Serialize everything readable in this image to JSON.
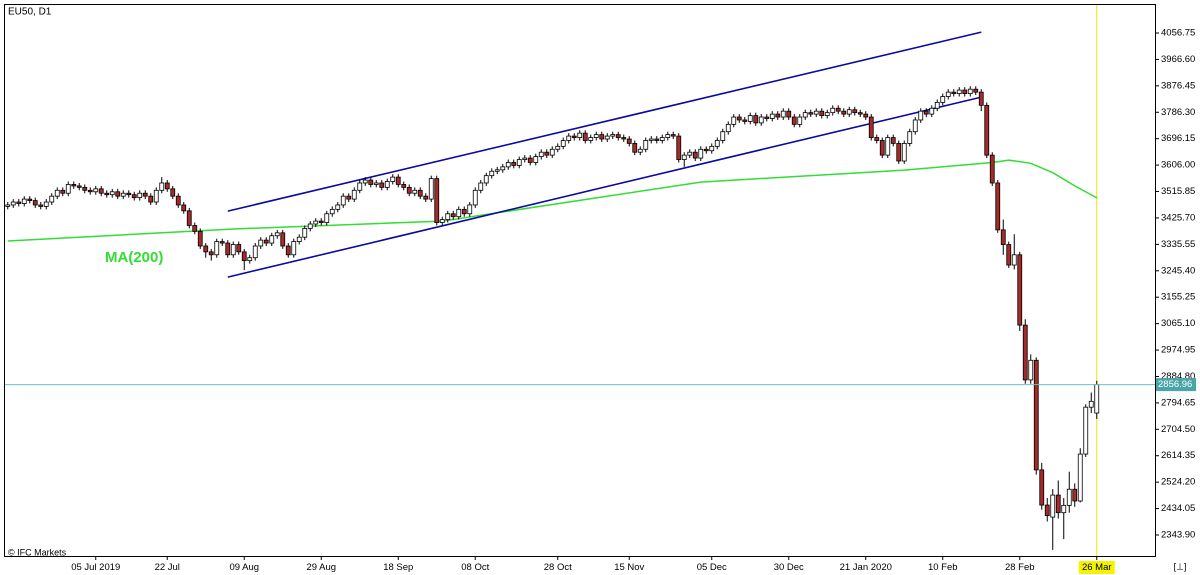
{
  "chart_data": {
    "type": "candlestick",
    "title": "EU50, D1",
    "source": "© IFC Markets",
    "up_color": "#ffffff",
    "down_color": "#a52a2a",
    "ylim": [
      2275.6,
      4152.3
    ],
    "yticks": [
      4056.75,
      {
        "value": 3966.6,
        "label": "3966.60"
      },
      3876.45,
      {
        "value": 3786.3,
        "label": "3786.30"
      },
      3696.15,
      {
        "value": 3606,
        "label": "3606.00"
      },
      3515.85,
      {
        "value": 3425.7,
        "label": "3425.70"
      },
      3335.55,
      {
        "value": 3245.4,
        "label": "3245.40"
      },
      3155.25,
      {
        "value": 3065.1,
        "label": "3065.10"
      },
      2974.95,
      {
        "value": 2884.8,
        "label": "2884.80"
      },
      2794.65,
      {
        "value": 2704.5,
        "label": "2704.50"
      },
      2614.35,
      {
        "value": 2524.2,
        "label": "2524.20"
      },
      2434.05,
      {
        "value": 2343.9,
        "label": "2343.90"
      }
    ],
    "last_price": 2856.96,
    "categories": [
      null,
      null,
      null,
      null,
      null,
      null,
      null,
      null,
      null,
      null,
      null,
      null,
      null,
      null,
      null,
      null,
      "05 Jul 2019",
      null,
      null,
      null,
      null,
      null,
      null,
      null,
      null,
      null,
      null,
      null,
      null,
      "22 Jul",
      null,
      null,
      null,
      null,
      null,
      null,
      null,
      null,
      null,
      null,
      null,
      null,
      null,
      "09 Aug",
      null,
      null,
      null,
      null,
      null,
      null,
      null,
      null,
      null,
      null,
      null,
      null,
      null,
      "29 Aug",
      null,
      null,
      null,
      null,
      null,
      null,
      null,
      null,
      null,
      null,
      null,
      null,
      null,
      "18 Sep",
      null,
      null,
      null,
      null,
      null,
      null,
      null,
      null,
      null,
      null,
      null,
      null,
      null,
      "08 Oct",
      null,
      null,
      null,
      null,
      null,
      null,
      null,
      null,
      null,
      null,
      null,
      null,
      null,
      null,
      "28 Oct",
      null,
      null,
      null,
      null,
      null,
      null,
      null,
      null,
      null,
      null,
      null,
      null,
      "15 Nov",
      null,
      null,
      null,
      null,
      null,
      null,
      null,
      null,
      null,
      null,
      null,
      null,
      null,
      null,
      "05 Dec",
      null,
      null,
      null,
      null,
      null,
      null,
      null,
      null,
      null,
      null,
      null,
      null,
      null,
      "30 Dec",
      null,
      null,
      null,
      null,
      null,
      null,
      null,
      null,
      null,
      null,
      null,
      null,
      null,
      "21 Jan 2020",
      null,
      null,
      null,
      null,
      null,
      null,
      null,
      null,
      null,
      null,
      null,
      null,
      null,
      "10 Feb",
      null,
      null,
      null,
      null,
      null,
      null,
      null,
      null,
      null,
      null,
      null,
      null,
      null,
      "28 Feb",
      null,
      null,
      null,
      null,
      null,
      null,
      null,
      null,
      null,
      null,
      null,
      null,
      null,
      "26 Mar"
    ],
    "open": [
      3465,
      3470,
      3480,
      3475,
      3490,
      3485,
      3470,
      3465,
      3480,
      3500,
      3520,
      3510,
      3540,
      3535,
      3530,
      3520,
      3515,
      3525,
      3510,
      3505,
      3515,
      3500,
      3510,
      3505,
      3495,
      3510,
      3500,
      3480,
      3520,
      3545,
      3525,
      3500,
      3470,
      3450,
      3400,
      3380,
      3330,
      3310,
      3300,
      3345,
      3340,
      3300,
      3335,
      3310,
      3280,
      3290,
      3330,
      3350,
      3340,
      3365,
      3375,
      3330,
      3300,
      3345,
      3360,
      3390,
      3405,
      3415,
      3410,
      3440,
      3455,
      3470,
      3500,
      3490,
      3520,
      3545,
      3555,
      3540,
      3545,
      3530,
      3550,
      3565,
      3540,
      3530,
      3510,
      3520,
      3500,
      3490,
      3560,
      3410,
      3420,
      3440,
      3430,
      3455,
      3440,
      3470,
      3520,
      3545,
      3570,
      3585,
      3590,
      3600,
      3615,
      3605,
      3625,
      3630,
      3615,
      3635,
      3650,
      3640,
      3660,
      3670,
      3690,
      3705,
      3700,
      3715,
      3690,
      3700,
      3710,
      3695,
      3705,
      3710,
      3700,
      3695,
      3680,
      3650,
      3660,
      3690,
      3695,
      3690,
      3700,
      3710,
      3705,
      3625,
      3640,
      3650,
      3630,
      3660,
      3655,
      3670,
      3690,
      3720,
      3745,
      3770,
      3760,
      3755,
      3775,
      3750,
      3770,
      3765,
      3780,
      3770,
      3790,
      3770,
      3745,
      3770,
      3785,
      3780,
      3790,
      3775,
      3785,
      3800,
      3790,
      3780,
      3795,
      3785,
      3780,
      3770,
      3700,
      3690,
      3640,
      3700,
      3680,
      3620,
      3680,
      3720,
      3760,
      3790,
      3780,
      3800,
      3820,
      3840,
      3855,
      3850,
      3862,
      3850,
      3865,
      3855,
      3810,
      3640,
      3545,
      3385,
      3335,
      3265,
      3300,
      3060,
      2873,
      2940,
      2566,
      2446,
      2405,
      2480,
      2420,
      2445,
      2500,
      2460,
      2620,
      2780,
      2760
    ],
    "high": [
      3480,
      3490,
      3490,
      3500,
      3500,
      3495,
      3480,
      3490,
      3510,
      3530,
      3530,
      3550,
      3550,
      3545,
      3540,
      3530,
      3535,
      3535,
      3520,
      3525,
      3525,
      3520,
      3520,
      3515,
      3520,
      3520,
      3510,
      3530,
      3565,
      3555,
      3535,
      3510,
      3480,
      3460,
      3410,
      3390,
      3340,
      3320,
      3355,
      3355,
      3350,
      3345,
      3345,
      3320,
      3300,
      3340,
      3360,
      3360,
      3375,
      3385,
      3385,
      3340,
      3355,
      3370,
      3400,
      3415,
      3425,
      3425,
      3450,
      3465,
      3480,
      3510,
      3510,
      3530,
      3555,
      3565,
      3565,
      3555,
      3555,
      3560,
      3575,
      3575,
      3550,
      3540,
      3530,
      3530,
      3510,
      3570,
      3570,
      3430,
      3450,
      3450,
      3465,
      3465,
      3480,
      3530,
      3555,
      3580,
      3595,
      3600,
      3610,
      3625,
      3625,
      3635,
      3640,
      3640,
      3645,
      3660,
      3660,
      3670,
      3680,
      3700,
      3715,
      3715,
      3725,
      3725,
      3710,
      3720,
      3720,
      3715,
      3720,
      3720,
      3710,
      3705,
      3690,
      3670,
      3700,
      3705,
      3705,
      3710,
      3720,
      3720,
      3715,
      3650,
      3660,
      3660,
      3670,
      3670,
      3680,
      3700,
      3730,
      3755,
      3780,
      3780,
      3770,
      3785,
      3785,
      3780,
      3780,
      3790,
      3790,
      3800,
      3800,
      3780,
      3780,
      3795,
      3795,
      3800,
      3800,
      3795,
      3810,
      3810,
      3800,
      3805,
      3805,
      3795,
      3790,
      3780,
      3710,
      3700,
      3710,
      3710,
      3690,
      3690,
      3730,
      3770,
      3800,
      3800,
      3810,
      3830,
      3850,
      3865,
      3865,
      3872,
      3872,
      3875,
      3875,
      3865,
      3820,
      3650,
      3555,
      3420,
      3345,
      3370,
      3310,
      3080,
      2960,
      2950,
      2590,
      2470,
      2500,
      2530,
      2470,
      2560,
      2520,
      2640,
      2790,
      2830,
      2870
    ],
    "low": [
      3455,
      3460,
      3465,
      3465,
      3475,
      3460,
      3455,
      3455,
      3470,
      3490,
      3500,
      3500,
      3525,
      3520,
      3510,
      3505,
      3505,
      3500,
      3495,
      3495,
      3490,
      3490,
      3495,
      3485,
      3485,
      3490,
      3470,
      3470,
      3510,
      3515,
      3490,
      3460,
      3440,
      3390,
      3370,
      3320,
      3290,
      3280,
      3290,
      3330,
      3290,
      3290,
      3300,
      3248,
      3270,
      3280,
      3320,
      3330,
      3330,
      3355,
      3320,
      3290,
      3290,
      3335,
      3350,
      3380,
      3395,
      3400,
      3400,
      3430,
      3445,
      3460,
      3480,
      3480,
      3510,
      3535,
      3530,
      3530,
      3520,
      3520,
      3540,
      3530,
      3520,
      3500,
      3500,
      3490,
      3480,
      3480,
      3400,
      3400,
      3410,
      3420,
      3420,
      3430,
      3430,
      3460,
      3510,
      3535,
      3560,
      3575,
      3580,
      3590,
      3595,
      3595,
      3615,
      3605,
      3605,
      3625,
      3630,
      3630,
      3650,
      3660,
      3680,
      3690,
      3690,
      3680,
      3680,
      3690,
      3685,
      3685,
      3695,
      3690,
      3685,
      3670,
      3640,
      3640,
      3650,
      3680,
      3680,
      3680,
      3690,
      3695,
      3615,
      3600,
      3630,
      3620,
      3620,
      3645,
      3645,
      3660,
      3680,
      3710,
      3735,
      3750,
      3745,
      3745,
      3740,
      3740,
      3755,
      3755,
      3760,
      3760,
      3760,
      3735,
      3735,
      3760,
      3770,
      3770,
      3765,
      3765,
      3775,
      3780,
      3770,
      3770,
      3775,
      3770,
      3760,
      3690,
      3680,
      3630,
      3630,
      3670,
      3610,
      3610,
      3670,
      3710,
      3750,
      3770,
      3770,
      3790,
      3810,
      3830,
      3840,
      3840,
      3840,
      3840,
      3845,
      3790,
      3630,
      3535,
      3375,
      3300,
      3255,
      3250,
      3040,
      2860,
      2860,
      2550,
      2430,
      2390,
      2293,
      2400,
      2330,
      2420,
      2440,
      2455,
      2610,
      2760,
      2740
    ],
    "close": [
      3470,
      3480,
      3475,
      3490,
      3485,
      3470,
      3465,
      3480,
      3500,
      3520,
      3510,
      3540,
      3535,
      3530,
      3520,
      3515,
      3525,
      3510,
      3505,
      3515,
      3500,
      3510,
      3505,
      3495,
      3510,
      3500,
      3480,
      3520,
      3545,
      3525,
      3500,
      3470,
      3450,
      3400,
      3380,
      3330,
      3310,
      3300,
      3345,
      3340,
      3300,
      3335,
      3310,
      3280,
      3290,
      3330,
      3350,
      3340,
      3365,
      3375,
      3330,
      3300,
      3345,
      3360,
      3390,
      3405,
      3415,
      3410,
      3440,
      3455,
      3470,
      3500,
      3490,
      3520,
      3545,
      3555,
      3540,
      3545,
      3530,
      3550,
      3565,
      3540,
      3530,
      3510,
      3520,
      3500,
      3490,
      3560,
      3410,
      3420,
      3440,
      3430,
      3455,
      3440,
      3470,
      3520,
      3545,
      3570,
      3585,
      3590,
      3600,
      3615,
      3605,
      3625,
      3630,
      3615,
      3635,
      3650,
      3640,
      3660,
      3670,
      3690,
      3705,
      3700,
      3715,
      3690,
      3700,
      3710,
      3695,
      3705,
      3710,
      3700,
      3695,
      3680,
      3650,
      3660,
      3690,
      3695,
      3690,
      3700,
      3710,
      3705,
      3625,
      3640,
      3650,
      3630,
      3660,
      3655,
      3670,
      3690,
      3720,
      3745,
      3770,
      3760,
      3755,
      3775,
      3750,
      3770,
      3765,
      3780,
      3770,
      3790,
      3770,
      3745,
      3770,
      3785,
      3780,
      3790,
      3775,
      3785,
      3800,
      3790,
      3780,
      3795,
      3785,
      3780,
      3770,
      3700,
      3690,
      3640,
      3700,
      3680,
      3620,
      3680,
      3720,
      3760,
      3790,
      3780,
      3800,
      3820,
      3840,
      3855,
      3850,
      3862,
      3850,
      3865,
      3855,
      3810,
      3640,
      3545,
      3385,
      3335,
      3265,
      3300,
      3060,
      2873,
      2940,
      2566,
      2446,
      2410,
      2480,
      2420,
      2445,
      2500,
      2460,
      2620,
      2780,
      2800,
      2856.96
    ],
    "series": [
      {
        "name": "MA(200)",
        "color": "#33dd33",
        "x": [
          0,
          41,
          79,
          126,
          163,
          179,
          182,
          186,
          190,
          194,
          198
        ],
        "values": [
          3347,
          3388,
          3415,
          3548,
          3589,
          3615,
          3623,
          3612,
          3580,
          3535,
          3494
        ]
      }
    ],
    "trendlines": [
      {
        "color": "#0a0aa0",
        "x": [
          40,
          177
        ],
        "values": [
          3449,
          4060
        ]
      },
      {
        "color": "#0a0aa0",
        "x": [
          40,
          177
        ],
        "values": [
          3224,
          3838
        ]
      }
    ]
  }
}
